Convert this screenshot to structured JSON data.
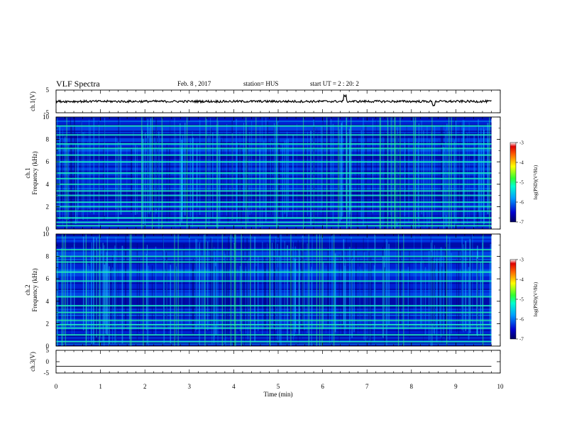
{
  "header": {
    "title": "VLF Spectra",
    "date": "Feb. 8 , 2017",
    "station": "station= HUS",
    "start": "start UT =  2 : 20: 2"
  },
  "chart_data": [
    {
      "type": "line",
      "panel": "ch1-waveform",
      "ylabel": "ch.1(V)",
      "ylim": [
        -5,
        5
      ],
      "yticks": [
        "5",
        "-5"
      ],
      "xlim": [
        0,
        10
      ],
      "baseline": 0,
      "notes": "noisy waveform near 0 V with spikes near 6.5 and 8.5 min"
    },
    {
      "type": "heatmap",
      "panel": "ch1-spectrogram",
      "ylabel": "ch.1\nFrequency (kHz)",
      "ylim": [
        0,
        10
      ],
      "yticks": [
        "0",
        "2",
        "4",
        "6",
        "8",
        "10"
      ],
      "xlim": [
        0,
        10
      ],
      "data_end_min": 9.8,
      "bands_khz": [
        0.3,
        0.6,
        1.0,
        1.6,
        2.0,
        2.4,
        3.0,
        3.4,
        4.0,
        4.5,
        5.0,
        6.0,
        6.6,
        7.2,
        7.6,
        8.4,
        9.2
      ],
      "colorbar": {
        "label": "log(PSD)(V²/Hz)",
        "ticks": [
          "-3",
          "-4",
          "-5",
          "-6",
          "-7"
        ],
        "range": [
          -7,
          -3
        ]
      }
    },
    {
      "type": "heatmap",
      "panel": "ch2-spectrogram",
      "ylabel": "ch.2\nFrequency (kHz)",
      "ylim": [
        0,
        10
      ],
      "yticks": [
        "0",
        "2",
        "4",
        "6",
        "8",
        "10"
      ],
      "xlim": [
        0,
        10
      ],
      "data_end_min": 9.8,
      "bands_khz": [
        0.4,
        1.0,
        1.6,
        1.9,
        2.3,
        3.0,
        3.6,
        4.4,
        5.8,
        6.6,
        7.5,
        8.0,
        8.6
      ],
      "colorbar": {
        "label": "log(PSD)(V²/Hz)",
        "ticks": [
          "-3",
          "-4",
          "-5",
          "-6",
          "-7"
        ],
        "range": [
          -7,
          -3
        ]
      }
    },
    {
      "type": "line",
      "panel": "ch3-waveform",
      "ylabel": "ch.3(V)",
      "ylim": [
        -5,
        5
      ],
      "yticks": [
        "5",
        "0",
        "-5"
      ],
      "xlim": [
        0,
        10
      ],
      "constant_value": -2,
      "xlabel": "Time (min)",
      "xticks": [
        "0",
        "1",
        "2",
        "3",
        "4",
        "5",
        "6",
        "7",
        "8",
        "9",
        "10"
      ]
    }
  ],
  "colors": {
    "spectrogram_low": "#000090",
    "spectrogram_mid": "#00c8ff",
    "spectrogram_band": "#30ff60",
    "axis": "#000000"
  }
}
